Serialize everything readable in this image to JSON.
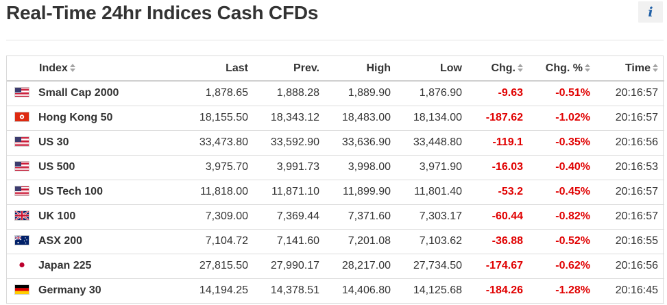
{
  "page": {
    "title": "Real-Time 24hr Indices Cash CFDs",
    "info_label": "i"
  },
  "colors": {
    "negative": "#e00000",
    "text": "#333333",
    "info_bg": "#f1f1f1",
    "info_icon": "#1f5fa6"
  },
  "table": {
    "columns": [
      "Index",
      "Last",
      "Prev.",
      "High",
      "Low",
      "Chg.",
      "Chg. %",
      "Time"
    ],
    "rows": [
      {
        "flag": "us-flag-icon",
        "name": "Small Cap 2000",
        "last": "1,878.65",
        "prev": "1,888.28",
        "high": "1,889.90",
        "low": "1,876.90",
        "chg": "-9.63",
        "chg_pct": "-0.51%",
        "time": "20:16:57"
      },
      {
        "flag": "hk-flag-icon",
        "name": "Hong Kong 50",
        "last": "18,155.50",
        "prev": "18,343.12",
        "high": "18,483.00",
        "low": "18,134.00",
        "chg": "-187.62",
        "chg_pct": "-1.02%",
        "time": "20:16:57"
      },
      {
        "flag": "us-flag-icon",
        "name": "US 30",
        "last": "33,473.80",
        "prev": "33,592.90",
        "high": "33,636.90",
        "low": "33,448.80",
        "chg": "-119.1",
        "chg_pct": "-0.35%",
        "time": "20:16:56"
      },
      {
        "flag": "us-flag-icon",
        "name": "US 500",
        "last": "3,975.70",
        "prev": "3,991.73",
        "high": "3,998.00",
        "low": "3,971.90",
        "chg": "-16.03",
        "chg_pct": "-0.40%",
        "time": "20:16:53"
      },
      {
        "flag": "us-flag-icon",
        "name": "US Tech 100",
        "last": "11,818.00",
        "prev": "11,871.10",
        "high": "11,899.90",
        "low": "11,801.40",
        "chg": "-53.2",
        "chg_pct": "-0.45%",
        "time": "20:16:57"
      },
      {
        "flag": "uk-flag-icon",
        "name": "UK 100",
        "last": "7,309.00",
        "prev": "7,369.44",
        "high": "7,371.60",
        "low": "7,303.17",
        "chg": "-60.44",
        "chg_pct": "-0.82%",
        "time": "20:16:57"
      },
      {
        "flag": "au-flag-icon",
        "name": "ASX 200",
        "last": "7,104.72",
        "prev": "7,141.60",
        "high": "7,201.08",
        "low": "7,103.62",
        "chg": "-36.88",
        "chg_pct": "-0.52%",
        "time": "20:16:55"
      },
      {
        "flag": "jp-flag-icon",
        "name": "Japan 225",
        "last": "27,815.50",
        "prev": "27,990.17",
        "high": "28,217.00",
        "low": "27,734.50",
        "chg": "-174.67",
        "chg_pct": "-0.62%",
        "time": "20:16:56"
      },
      {
        "flag": "de-flag-icon",
        "name": "Germany 30",
        "last": "14,194.25",
        "prev": "14,378.51",
        "high": "14,406.80",
        "low": "14,125.68",
        "chg": "-184.26",
        "chg_pct": "-1.28%",
        "time": "20:16:45"
      }
    ]
  }
}
